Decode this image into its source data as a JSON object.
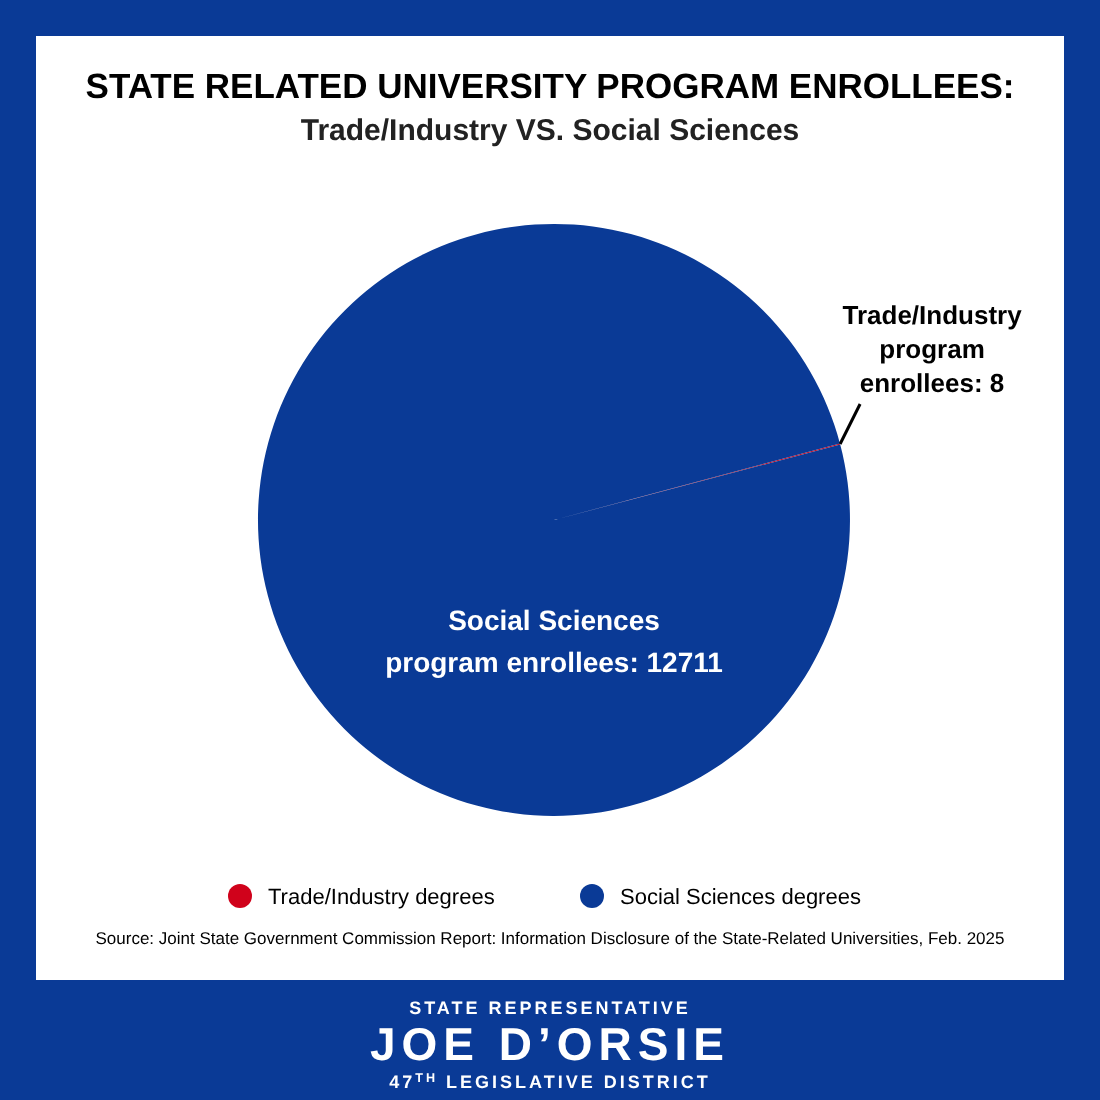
{
  "chart_data": {
    "type": "pie",
    "title": "STATE RELATED UNIVERSITY PROGRAM ENROLLEES:",
    "subtitle": "Trade/Industry VS. Social Sciences",
    "categories": [
      "Trade/Industry degrees",
      "Social Sciences degrees"
    ],
    "values": [
      8,
      12711
    ],
    "colors": [
      "#d0021b",
      "#0a3a96"
    ],
    "value_labels": [
      "Trade/Industry\nprogram\nenrollees: 8",
      "Social Sciences\nprogram enrollees: 12711"
    ],
    "legend": "bottom",
    "annotations": [
      "Source: Joint State Government Commission Report: Information Disclosure of the State-Related Universities, Feb. 2025",
      "STATE REPRESENTATIVE",
      "JOE D’ORSIE",
      "47$^{TH}$ LEGISLATIVE DISTRICT"
    ]
  }
}
